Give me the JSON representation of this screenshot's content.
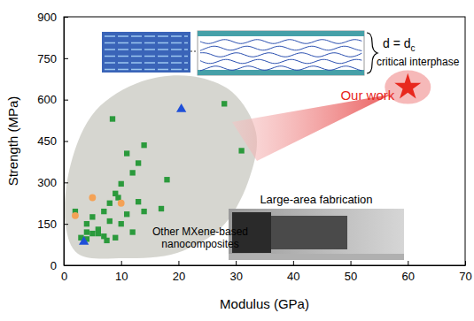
{
  "chart_data": {
    "type": "scatter",
    "x_label": "Modulus (GPa)",
    "y_label": "Strength (MPa)",
    "xlim": [
      0,
      70
    ],
    "ylim": [
      0,
      900
    ],
    "xticks": [
      0,
      10,
      20,
      30,
      40,
      50,
      60,
      70
    ],
    "yticks": [
      0,
      150,
      300,
      450,
      600,
      750,
      900
    ],
    "grid": false,
    "series": [
      {
        "color": "#2b9a3c",
        "marker": "square",
        "x": [
          8.5,
          28,
          31,
          14,
          11,
          13,
          12,
          18,
          10,
          9,
          9.5,
          8,
          13,
          11,
          7,
          14,
          17,
          8,
          4,
          2,
          5,
          10,
          12,
          4,
          5,
          6,
          7,
          7.5,
          9,
          3,
          4,
          6
        ],
        "values": [
          530,
          585,
          415,
          435,
          405,
          370,
          335,
          310,
          295,
          260,
          245,
          225,
          230,
          185,
          195,
          195,
          205,
          160,
          150,
          195,
          175,
          150,
          120,
          120,
          115,
          115,
          105,
          90,
          100,
          100,
          95,
          130
        ]
      },
      {
        "color": "#f4a256",
        "marker": "circle",
        "x": [
          2,
          5,
          10
        ],
        "values": [
          180,
          245,
          225
        ]
      },
      {
        "color": "#1f4fd8",
        "marker": "triangle",
        "x": [
          20.5,
          3.5
        ],
        "values": [
          565,
          85
        ]
      },
      {
        "color": "#e8281e",
        "marker": "star",
        "x": [
          60
        ],
        "values": [
          645
        ]
      }
    ],
    "annotations": [
      "Our work",
      "Large-area fabrication",
      "critical interphase"
    ],
    "region_label": [
      "Other MXene-based",
      "nanocomposites"
    ],
    "equation": [
      "d = d",
      "c"
    ]
  }
}
